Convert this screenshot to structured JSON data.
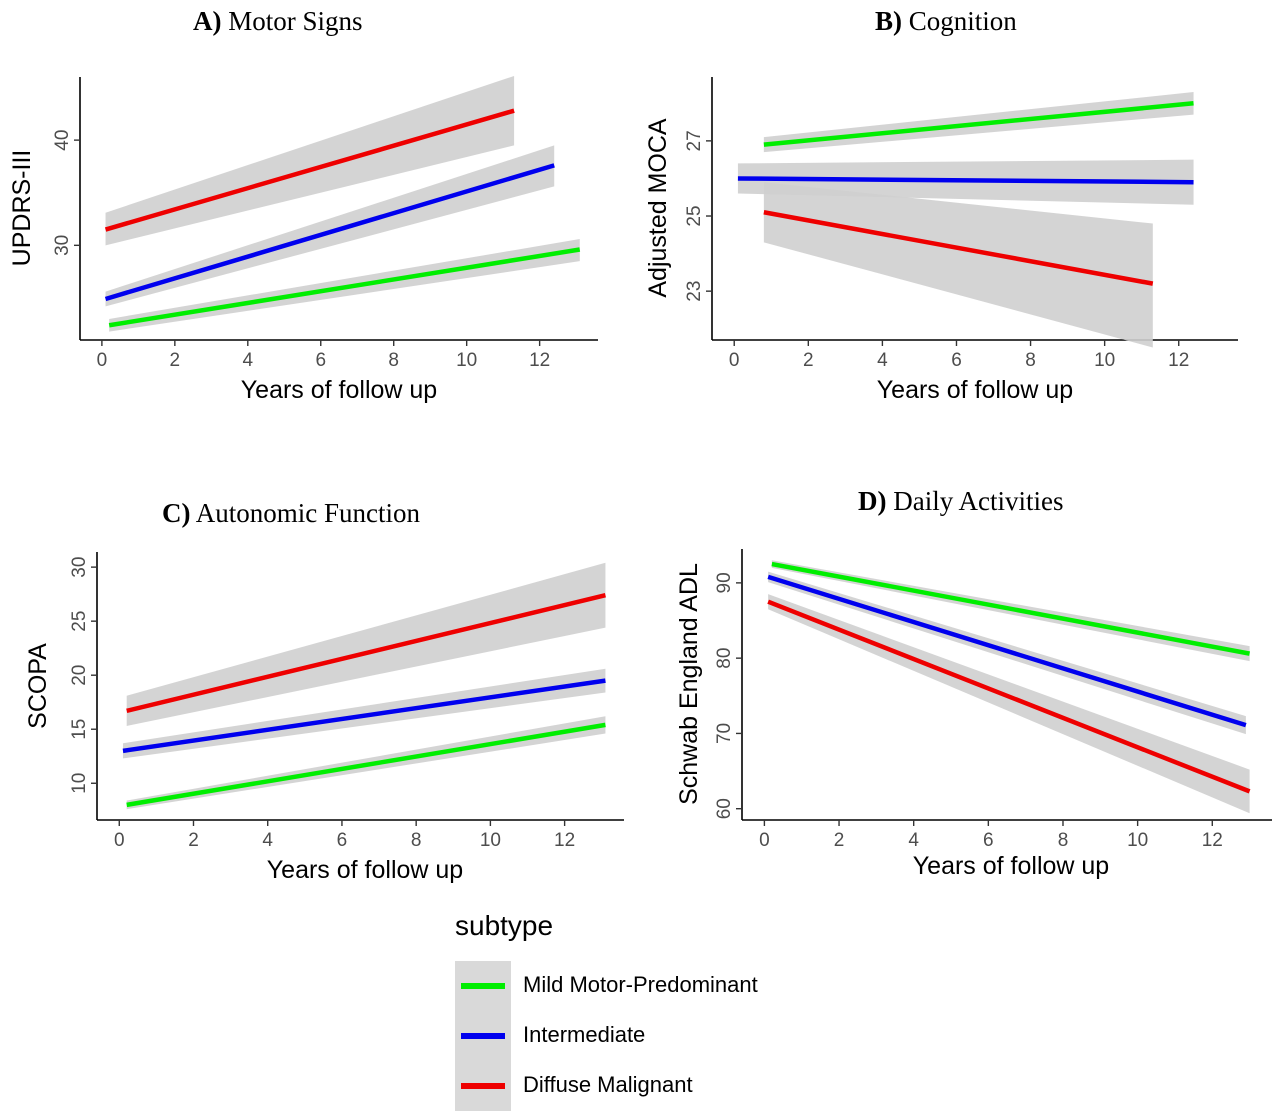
{
  "colors": {
    "mild": "#00ee00",
    "intermediate": "#0000ee",
    "diffuse": "#ee0000",
    "ribbon": "#cfcfcf"
  },
  "legend": {
    "title": "subtype",
    "items": [
      {
        "key": "mild",
        "label": "Mild Motor-Predominant"
      },
      {
        "key": "intermediate",
        "label": "Intermediate"
      },
      {
        "key": "diffuse",
        "label": "Diffuse Malignant"
      }
    ]
  },
  "panels": [
    {
      "letter": "A)",
      "title": "Motor Signs"
    },
    {
      "letter": "B)",
      "title": "Cognition"
    },
    {
      "letter": "C)",
      "title": "Autonomic Function"
    },
    {
      "letter": "D)",
      "title": "Daily Activities"
    }
  ],
  "chart_data": [
    {
      "type": "line",
      "title": "A) Motor Signs",
      "xlabel": "Years of follow up",
      "ylabel": "UPDRS-III",
      "xlim": [
        -0.6,
        13.6
      ],
      "ylim": [
        21.0,
        46.0
      ],
      "xticks": [
        0,
        2,
        4,
        6,
        8,
        10,
        12
      ],
      "yticks": [
        30,
        40
      ],
      "legend": "bottom",
      "series": [
        {
          "name": "Mild Motor-Predominant",
          "key": "mild",
          "x": [
            0.2,
            13.1
          ],
          "y": [
            22.4,
            29.6
          ],
          "lower": [
            21.8,
            28.5
          ],
          "upper": [
            23.0,
            30.6
          ]
        },
        {
          "name": "Intermediate",
          "key": "intermediate",
          "x": [
            0.1,
            12.4
          ],
          "y": [
            24.9,
            37.6
          ],
          "lower": [
            24.2,
            35.6
          ],
          "upper": [
            25.6,
            39.5
          ]
        },
        {
          "name": "Diffuse Malignant",
          "key": "diffuse",
          "x": [
            0.1,
            11.3
          ],
          "y": [
            31.5,
            42.8
          ],
          "lower": [
            30.0,
            39.5
          ],
          "upper": [
            33.1,
            46.1
          ]
        }
      ]
    },
    {
      "type": "line",
      "title": "B) Cognition",
      "xlabel": "Years of follow up",
      "ylabel": "Adjusted MOCA",
      "xlim": [
        -0.6,
        13.6
      ],
      "ylim": [
        21.7,
        28.7
      ],
      "xticks": [
        0,
        2,
        4,
        6,
        8,
        10,
        12
      ],
      "yticks": [
        23,
        25,
        27
      ],
      "legend": "bottom",
      "series": [
        {
          "name": "Mild Motor-Predominant",
          "key": "mild",
          "x": [
            0.8,
            12.4
          ],
          "y": [
            26.9,
            28.0
          ],
          "lower": [
            26.7,
            27.7
          ],
          "upper": [
            27.1,
            28.3
          ]
        },
        {
          "name": "Intermediate",
          "key": "intermediate",
          "x": [
            0.1,
            12.4
          ],
          "y": [
            26.0,
            25.9
          ],
          "lower": [
            25.6,
            25.3
          ],
          "upper": [
            26.4,
            26.5
          ]
        },
        {
          "name": "Diffuse Malignant",
          "key": "diffuse",
          "x": [
            0.8,
            11.3
          ],
          "y": [
            25.1,
            23.2
          ],
          "lower": [
            24.3,
            21.5
          ],
          "upper": [
            25.9,
            24.8
          ]
        }
      ]
    },
    {
      "type": "line",
      "title": "C) Autonomic Function",
      "xlabel": "Years of follow up",
      "ylabel": "SCOPA",
      "xlim": [
        -0.6,
        13.6
      ],
      "ylim": [
        6.6,
        31.4
      ],
      "xticks": [
        0,
        2,
        4,
        6,
        8,
        10,
        12
      ],
      "yticks": [
        10,
        15,
        20,
        25,
        30
      ],
      "legend": "bottom",
      "series": [
        {
          "name": "Mild Motor-Predominant",
          "key": "mild",
          "x": [
            0.2,
            13.1
          ],
          "y": [
            8.0,
            15.4
          ],
          "lower": [
            7.6,
            14.6
          ],
          "upper": [
            8.4,
            16.2
          ]
        },
        {
          "name": "Intermediate",
          "key": "intermediate",
          "x": [
            0.1,
            13.1
          ],
          "y": [
            13.0,
            19.5
          ],
          "lower": [
            12.3,
            18.4
          ],
          "upper": [
            13.7,
            20.6
          ]
        },
        {
          "name": "Diffuse Malignant",
          "key": "diffuse",
          "x": [
            0.2,
            13.1
          ],
          "y": [
            16.7,
            27.4
          ],
          "lower": [
            15.3,
            24.4
          ],
          "upper": [
            18.1,
            30.4
          ]
        }
      ]
    },
    {
      "type": "line",
      "title": "D) Daily Activities",
      "xlabel": "Years of follow up",
      "ylabel": "Schwab England ADL",
      "xlim": [
        -0.6,
        13.6
      ],
      "ylim": [
        58.5,
        94.5
      ],
      "xticks": [
        0,
        2,
        4,
        6,
        8,
        10,
        12
      ],
      "yticks": [
        60,
        70,
        80,
        90
      ],
      "legend": "bottom",
      "series": [
        {
          "name": "Mild Motor-Predominant",
          "key": "mild",
          "x": [
            0.2,
            13.0
          ],
          "y": [
            92.5,
            80.6
          ],
          "lower": [
            92.0,
            79.6
          ],
          "upper": [
            93.0,
            81.6
          ]
        },
        {
          "name": "Intermediate",
          "key": "intermediate",
          "x": [
            0.1,
            12.9
          ],
          "y": [
            90.8,
            71.1
          ],
          "lower": [
            90.1,
            69.9
          ],
          "upper": [
            91.5,
            72.3
          ]
        },
        {
          "name": "Diffuse Malignant",
          "key": "diffuse",
          "x": [
            0.1,
            13.0
          ],
          "y": [
            87.5,
            62.3
          ],
          "lower": [
            86.5,
            59.4
          ],
          "upper": [
            88.5,
            65.2
          ]
        }
      ]
    }
  ]
}
